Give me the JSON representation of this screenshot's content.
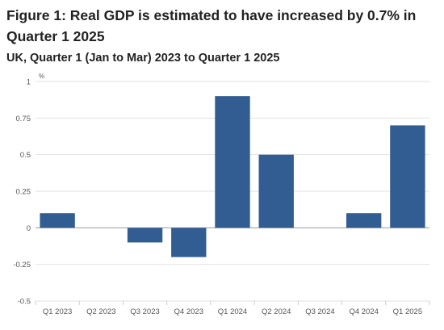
{
  "figure": {
    "title": "Figure 1: Real GDP is estimated to have increased by 0.7% in Quarter 1 2025",
    "subtitle": "UK, Quarter 1 (Jan to Mar) 2023 to Quarter 1 2025"
  },
  "chart_data": {
    "type": "bar",
    "title": "Figure 1: Real GDP is estimated to have increased by 0.7% in Quarter 1 2025",
    "subtitle": "UK, Quarter 1 (Jan to Mar) 2023 to Quarter 1 2025",
    "unit_label": "%",
    "categories": [
      "Q1 2023",
      "Q2 2023",
      "Q3 2023",
      "Q4 2023",
      "Q1 2024",
      "Q2 2024",
      "Q3 2024",
      "Q4 2024",
      "Q1 2025"
    ],
    "values": [
      0.1,
      0.0,
      -0.1,
      -0.2,
      0.9,
      0.5,
      0.0,
      0.1,
      0.7
    ],
    "ylim": [
      -0.5,
      1
    ],
    "yticks": [
      1,
      0.75,
      0.5,
      0.25,
      0,
      -0.25,
      -0.5
    ],
    "ytick_labels": [
      "1",
      "0.75",
      "0.5",
      "0.25",
      "0",
      "-0.25",
      "-0.5"
    ],
    "bar_color": "#325d92",
    "grid": true,
    "legend": false
  }
}
